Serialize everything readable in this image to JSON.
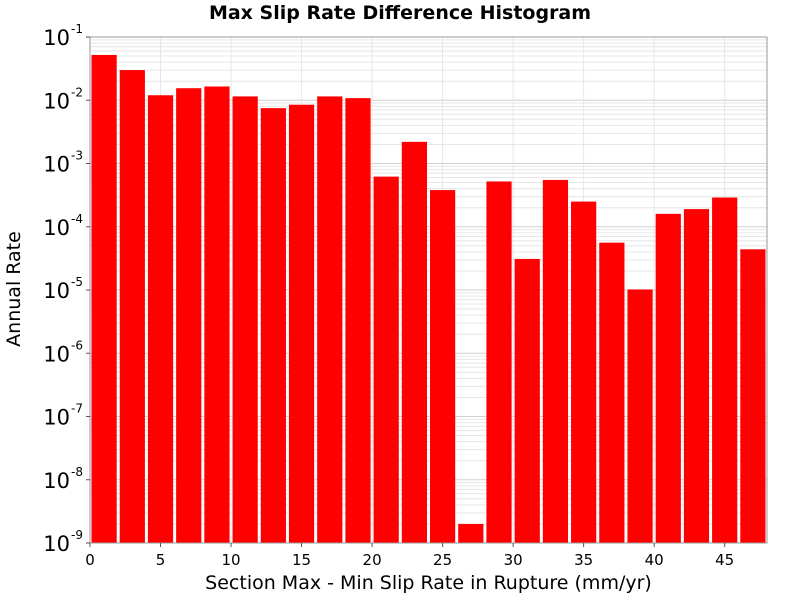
{
  "chart_data": {
    "type": "bar",
    "title": "Max Slip Rate Difference Histogram",
    "xlabel": "Section Max - Min Slip Rate in Rupture (mm/yr)",
    "ylabel": "Annual Rate",
    "y_scale": "log",
    "ylim": [
      1e-09,
      0.1
    ],
    "xlim": [
      0,
      48
    ],
    "bin_width": 2,
    "grid": true,
    "x_ticks": [
      "0",
      "5",
      "10",
      "15",
      "20",
      "25",
      "30",
      "35",
      "40",
      "45"
    ],
    "y_tick_exponents": [
      "-1",
      "-2",
      "-3",
      "-4",
      "-5",
      "-6",
      "-7",
      "-8",
      "-9"
    ],
    "y_tick_base": "10",
    "bar_color": "#ff0000",
    "x": [
      1,
      3,
      5,
      7,
      9,
      11,
      13,
      15,
      17,
      19,
      21,
      23,
      25,
      27,
      29,
      31,
      33,
      35,
      37,
      39,
      41,
      43,
      45,
      47
    ],
    "values": [
      0.052,
      0.03,
      0.012,
      0.0155,
      0.0165,
      0.0115,
      0.0075,
      0.0085,
      0.0115,
      0.0108,
      0.00062,
      0.0022,
      0.00038,
      2e-09,
      0.00052,
      3.1e-05,
      0.00055,
      0.00025,
      5.6e-05,
      1.02e-05,
      0.00016,
      0.00019,
      0.00029,
      4.4e-05
    ]
  }
}
